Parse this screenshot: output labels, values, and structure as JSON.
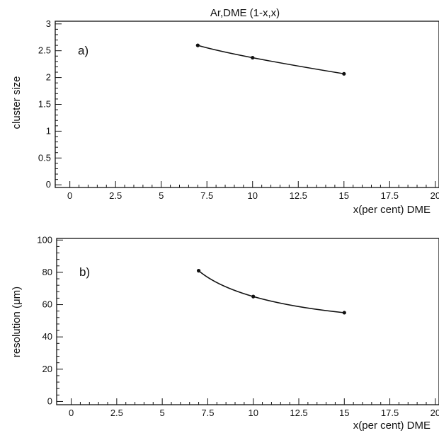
{
  "chart_data": [
    {
      "type": "line",
      "title": "Ar,DME (1-x,x)",
      "panel_label": "a)",
      "xlabel": "x(per cent) DME",
      "ylabel": "cluster size",
      "xlim": [
        -0.8,
        20.2
      ],
      "ylim": [
        -0.05,
        3.05
      ],
      "x_ticks": [
        0,
        2.5,
        5,
        7.5,
        10,
        12.5,
        15,
        17.5,
        20
      ],
      "x_tick_labels": [
        "0",
        "2.5",
        "5",
        "7.5",
        "10",
        "12.5",
        "15",
        "17.5",
        "20"
      ],
      "y_ticks": [
        0,
        0.5,
        1,
        1.5,
        2,
        2.5,
        3
      ],
      "y_tick_labels": [
        "0",
        "0.5",
        "1",
        "1.5",
        "2",
        "2.5",
        "3"
      ],
      "series": [
        {
          "x": [
            7,
            10,
            15
          ],
          "values": [
            2.6,
            2.37,
            2.07
          ]
        }
      ]
    },
    {
      "type": "line",
      "title": "",
      "panel_label": "b)",
      "xlabel": "x(per cent) DME",
      "ylabel": "resolution (μm)",
      "xlim": [
        -0.8,
        20.2
      ],
      "ylim": [
        -2,
        101
      ],
      "x_ticks": [
        0,
        2.5,
        5,
        7.5,
        10,
        12.5,
        15,
        17.5,
        20
      ],
      "x_tick_labels": [
        "0",
        "2.5",
        "5",
        "7.5",
        "10",
        "12.5",
        "15",
        "17.5",
        "20"
      ],
      "y_ticks": [
        0,
        20,
        40,
        60,
        80,
        100
      ],
      "y_tick_labels": [
        "0",
        "20",
        "40",
        "60",
        "80",
        "100"
      ],
      "series": [
        {
          "x": [
            7,
            10,
            15
          ],
          "values": [
            81,
            65,
            55
          ]
        }
      ]
    }
  ]
}
